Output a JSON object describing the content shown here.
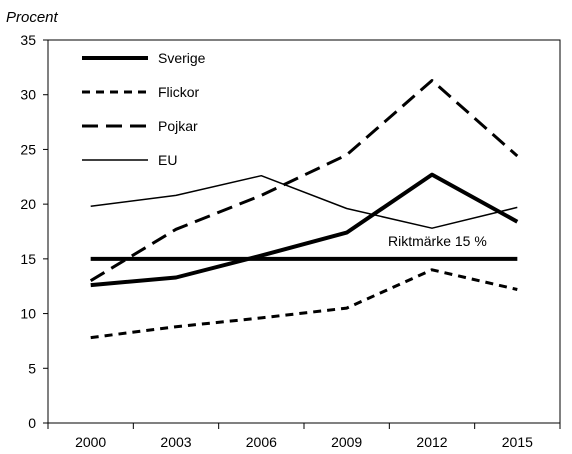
{
  "chart_data": {
    "type": "line",
    "ylabel": "Procent",
    "ylim": [
      0,
      35
    ],
    "yticks": [
      0,
      5,
      10,
      15,
      20,
      25,
      30,
      35
    ],
    "categories": [
      "2000",
      "2003",
      "2006",
      "2009",
      "2012",
      "2015"
    ],
    "series": [
      {
        "name": "Sverige",
        "style": "solid-thick",
        "values": [
          12.6,
          13.3,
          15.3,
          17.4,
          22.7,
          18.4
        ]
      },
      {
        "name": "Flickor",
        "style": "short-dash",
        "values": [
          7.8,
          8.8,
          9.6,
          10.5,
          14.0,
          12.2
        ]
      },
      {
        "name": "Pojkar",
        "style": "long-dash",
        "values": [
          13.0,
          17.7,
          20.8,
          24.5,
          31.3,
          24.4
        ]
      },
      {
        "name": "EU",
        "style": "thin",
        "values": [
          19.8,
          20.8,
          22.6,
          19.6,
          17.8,
          19.7
        ]
      }
    ],
    "reference_line": {
      "label": "Riktmärke 15 %",
      "value": 15
    },
    "legend_position": "top-left",
    "grid": false
  }
}
